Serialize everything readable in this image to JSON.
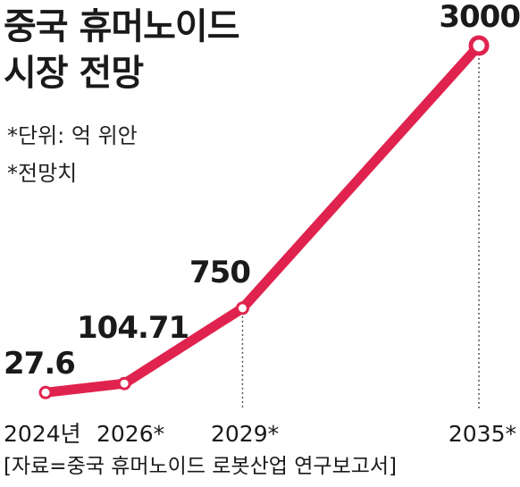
{
  "header": {
    "title_line1": "중국 휴머노이드",
    "title_line2": "시장 전망"
  },
  "notes": {
    "unit": "*단위: 억 위안",
    "forecast": "*전망치"
  },
  "source": "[자료=중국 휴머노이드 로봇산업 연구보고서]",
  "colors": {
    "line": "#e0234e",
    "marker_fill": "#ffffff",
    "guide": "#555555",
    "text": "#1a1a1a"
  },
  "chart_data": {
    "type": "line",
    "x": [
      2024,
      2026,
      2029,
      2035
    ],
    "tick_labels": [
      "2024년",
      "2026*",
      "2029*",
      "2035*"
    ],
    "data_labels": [
      "27.6",
      "104.71",
      "750",
      "3000"
    ],
    "series": [
      {
        "values": [
          27.6,
          104.71,
          750,
          3000
        ]
      }
    ],
    "xlim": [
      2024,
      2035
    ],
    "grid": false,
    "legend": "none"
  }
}
